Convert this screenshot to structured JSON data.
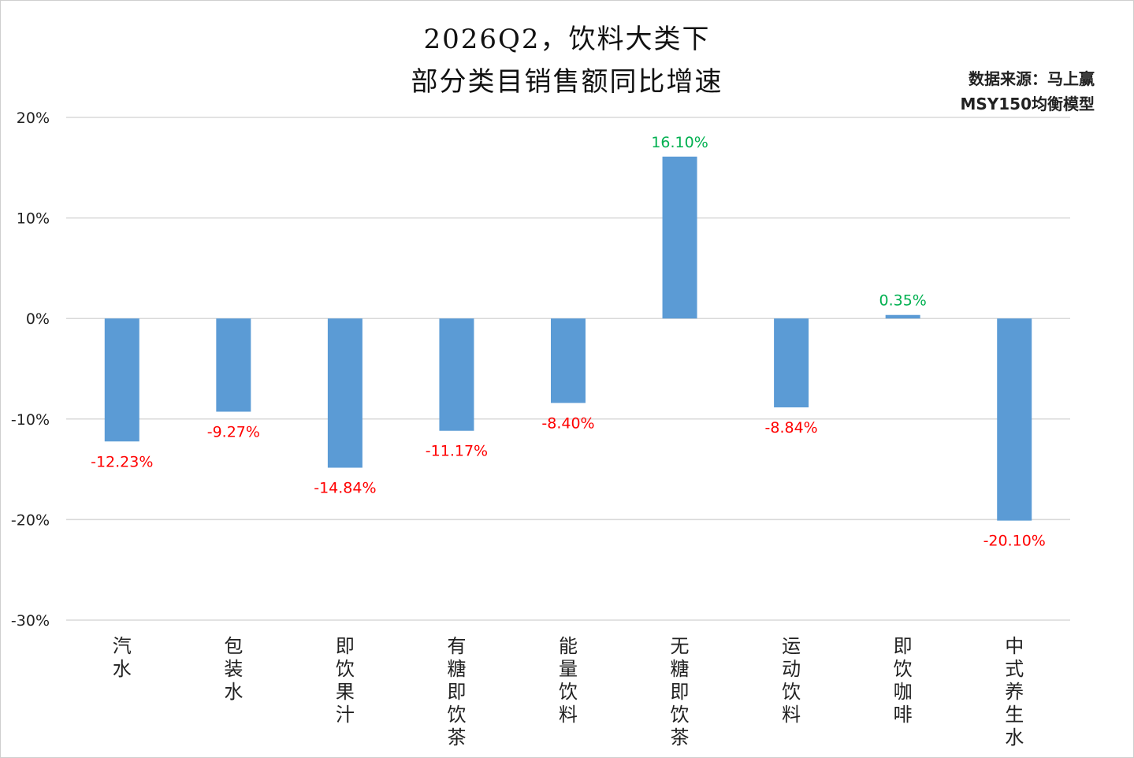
{
  "title_line1": "2026Q2，饮料大类下",
  "title_line2": "部分类目销售额同比增速",
  "source_line1": "数据来源：马上赢",
  "source_line2": "MSY150均衡模型",
  "colors": {
    "bar": "#5b9bd5",
    "positive_label": "#00b050",
    "negative_label": "#ff0000",
    "grid": "#d9d9d9"
  },
  "chart_data": {
    "type": "bar",
    "title": "2026Q2，饮料大类下 部分类目销售额同比增速",
    "categories": [
      "汽水",
      "包装水",
      "即饮果汁",
      "有糖即饮茶",
      "能量饮料",
      "无糖即饮茶",
      "运动饮料",
      "即饮咖啡",
      "中式养生水"
    ],
    "values": [
      -12.23,
      -9.27,
      -14.84,
      -11.17,
      -8.4,
      16.1,
      -8.84,
      0.35,
      -20.1
    ],
    "value_labels": [
      "-12.23%",
      "-9.27%",
      "-14.84%",
      "-11.17%",
      "-8.40%",
      "16.10%",
      "-8.84%",
      "0.35%",
      "-20.10%"
    ],
    "ylim": [
      -30,
      20
    ],
    "yticks": [
      20,
      10,
      0,
      -10,
      -20,
      -30
    ],
    "ytick_labels": [
      "20%",
      "10%",
      "0%",
      "-10%",
      "-20%",
      "-30%"
    ],
    "grid": true,
    "legend": "none"
  }
}
